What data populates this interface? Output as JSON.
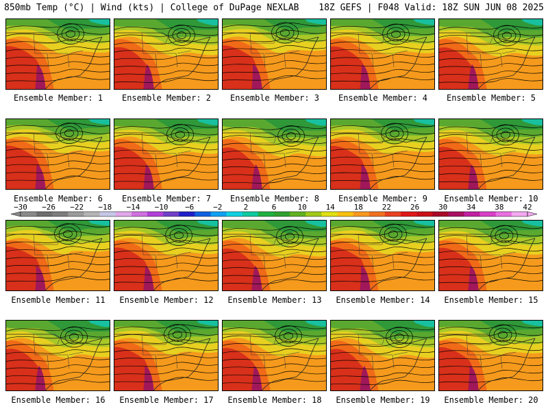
{
  "header": {
    "left": "850mb Temp (°C) | Wind (kts) | College of DuPage NEXLAB",
    "right": "18Z GEFS | F048 Valid: 18Z SUN JUN 08 2025"
  },
  "member_label_prefix": "Ensemble Member:",
  "members": [
    {
      "id": "1",
      "caption": "Ensemble Member: 1"
    },
    {
      "id": "2",
      "caption": "Ensemble Member: 2"
    },
    {
      "id": "3",
      "caption": "Ensemble Member: 3"
    },
    {
      "id": "4",
      "caption": "Ensemble Member: 4"
    },
    {
      "id": "5",
      "caption": "Ensemble Member: 5"
    },
    {
      "id": "6",
      "caption": "Ensemble Member: 6"
    },
    {
      "id": "7",
      "caption": "Ensemble Member: 7"
    },
    {
      "id": "8",
      "caption": "Ensemble Member: 8"
    },
    {
      "id": "9",
      "caption": "Ensemble Member: 9"
    },
    {
      "id": "10",
      "caption": "Ensemble Member: 10"
    },
    {
      "id": "11",
      "caption": "Ensemble Member: 11"
    },
    {
      "id": "12",
      "caption": "Ensemble Member: 12"
    },
    {
      "id": "13",
      "caption": "Ensemble Member: 13"
    },
    {
      "id": "14",
      "caption": "Ensemble Member: 14"
    },
    {
      "id": "15",
      "caption": "Ensemble Member: 15"
    },
    {
      "id": "16",
      "caption": "Ensemble Member: 16"
    },
    {
      "id": "17",
      "caption": "Ensemble Member: 17"
    },
    {
      "id": "18",
      "caption": "Ensemble Member: 18"
    },
    {
      "id": "19",
      "caption": "Ensemble Member: 19"
    },
    {
      "id": "20",
      "caption": "Ensemble Member: 20"
    }
  ],
  "colorbar": {
    "tick_labels": [
      "−30",
      "−26",
      "−22",
      "−18",
      "−14",
      "−10",
      "−6",
      "−2",
      "2",
      "6",
      "10",
      "14",
      "18",
      "22",
      "26",
      "30",
      "34",
      "38",
      "42"
    ],
    "colors": [
      "#8a8a8a",
      "#6e6e6e",
      "#7d7d7d",
      "#9a9a9a",
      "#b5b5b5",
      "#c6c6e6",
      "#e0a8e8",
      "#d070e0",
      "#b040d8",
      "#7040c8",
      "#2020c8",
      "#1060e0",
      "#10a0f0",
      "#10d0e0",
      "#10c8a0",
      "#20b040",
      "#30a030",
      "#60b020",
      "#a0c818",
      "#e0e010",
      "#f8c010",
      "#f89820",
      "#f07020",
      "#e84020",
      "#e01818",
      "#c81018",
      "#a80828",
      "#a81060",
      "#c020a0",
      "#d840c8",
      "#e870e0",
      "#f4a8f0"
    ]
  },
  "map_colors": {
    "hot_core": "#a0185a",
    "hot": "#d8301a",
    "warm": "#f06a18",
    "orange": "#f59a1c",
    "yellow": "#e8d020",
    "yellow_green": "#a8c828",
    "green": "#5aa830",
    "dark_green": "#2f9838",
    "teal": "#18c0a0"
  }
}
